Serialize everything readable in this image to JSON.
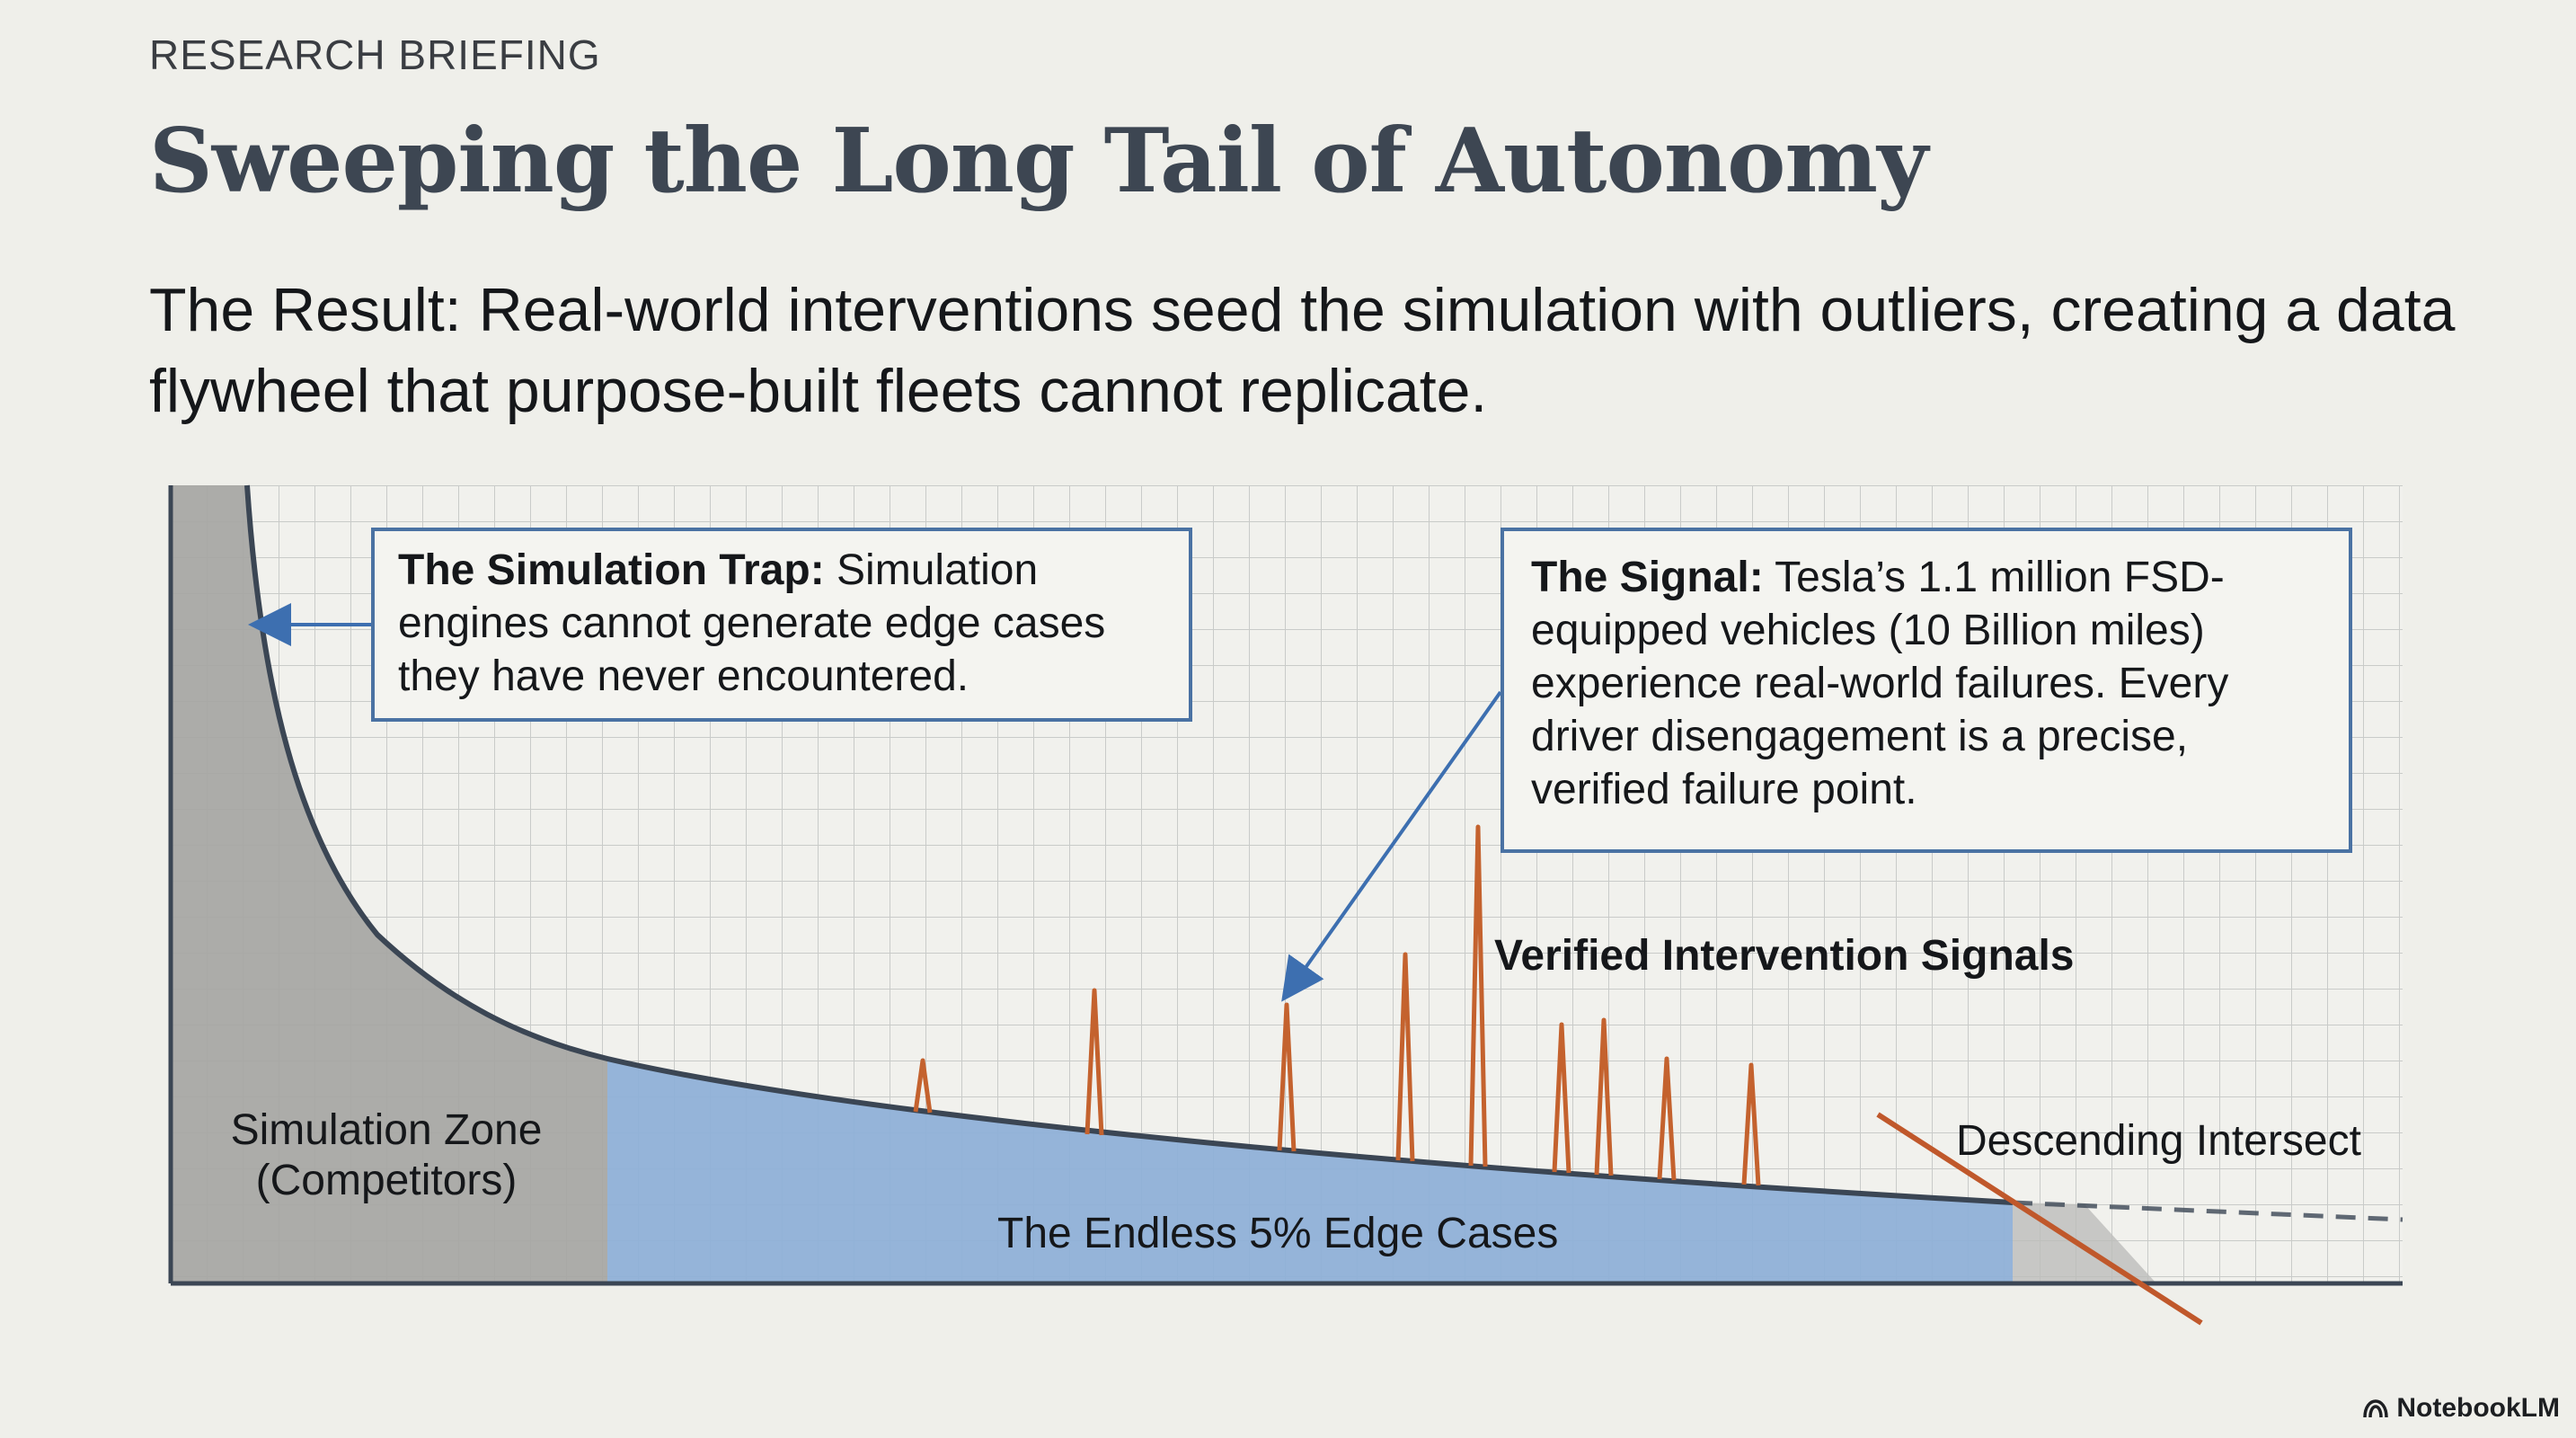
{
  "header": {
    "eyebrow": "RESEARCH BRIEFING",
    "title": "Sweeping the Long Tail of Autonomy",
    "subtitle": "The Result: Real-world interventions seed the simulation with outliers, creating a data flywheel that purpose-built fleets cannot replicate."
  },
  "callouts": {
    "trap": {
      "lead": "The Simulation Trap:",
      "body": " Simulation engines cannot generate edge cases they have never encountered."
    },
    "signal": {
      "lead": "The Signal:",
      "body": " Tesla’s 1.1 million FSD-equipped vehicles (10 Billion miles) experience real-world failures. Every driver disengagement is a precise, verified failure point."
    }
  },
  "regions": {
    "simulation_zone": "Simulation Zone\n(Competitors)",
    "edge_cases": "The Endless 5% Edge Cases",
    "signals": "Verified Intervention Signals",
    "intersect": "Descending Intersect"
  },
  "colors": {
    "curve": "#3b4654",
    "simulation_zone": "#a6a6a3",
    "edge_zone": "#8fb0d8",
    "spike": "#c4622e",
    "arrow": "#3d6fb0",
    "intersect_line": "#c0582b"
  },
  "brand": "NotebookLM"
}
